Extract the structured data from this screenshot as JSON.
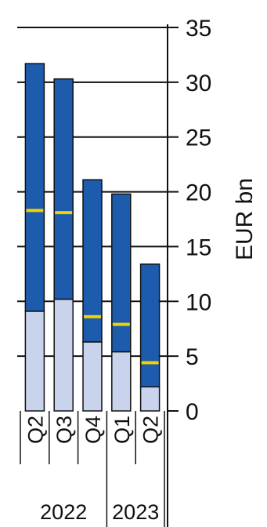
{
  "chart_data": {
    "type": "bar",
    "stacked": true,
    "categories": [
      "Q2",
      "Q3",
      "Q4",
      "Q1",
      "Q2"
    ],
    "years": [
      {
        "label": "2022",
        "from": 0,
        "to": 2
      },
      {
        "label": "2023",
        "from": 3,
        "to": 4
      }
    ],
    "series": [
      {
        "values": [
          9.1,
          10.2,
          6.3,
          5.4,
          2.2
        ],
        "color": "#c9d3ec"
      },
      {
        "values": [
          22.6,
          20.1,
          14.8,
          14.4,
          11.2
        ],
        "color": "#1d5cad"
      }
    ],
    "markers": {
      "values": [
        18.3,
        18.1,
        8.6,
        7.9,
        4.4
      ],
      "color": "#f2d100"
    },
    "ylabel": "EUR bn",
    "ylim": [
      0,
      35
    ],
    "yticks": [
      0,
      5,
      10,
      15,
      20,
      25,
      30,
      35
    ],
    "grid": true
  }
}
